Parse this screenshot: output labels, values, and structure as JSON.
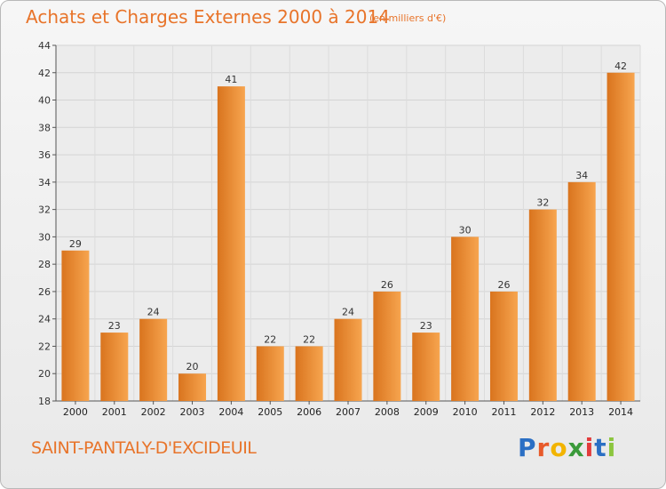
{
  "title": "Achats et Charges Externes 2000 à 2014",
  "unit": "(en milliers d'€)",
  "commune": "SAINT-PANTALY-D'EXCIDEUIL",
  "logo": {
    "letters": [
      "P",
      "r",
      "o",
      "x",
      "i",
      "t",
      "i"
    ],
    "colors": [
      "#2b6fc4",
      "#e85a2a",
      "#f2b400",
      "#3a9a3a",
      "#e23b3b",
      "#2b6fc4",
      "#8cc63f"
    ]
  },
  "colors": {
    "accent": "#e8742a",
    "bar_light": "#f7a54f",
    "bar_dark": "#d9741e"
  },
  "chart_data": {
    "type": "bar",
    "categories": [
      "2000",
      "2001",
      "2002",
      "2003",
      "2004",
      "2005",
      "2006",
      "2007",
      "2008",
      "2009",
      "2010",
      "2011",
      "2012",
      "2013",
      "2014"
    ],
    "values": [
      29,
      23,
      24,
      20,
      41,
      22,
      22,
      24,
      26,
      23,
      30,
      26,
      32,
      34,
      42
    ],
    "ylim": [
      18,
      44
    ],
    "yticks": [
      18,
      20,
      22,
      24,
      26,
      28,
      30,
      32,
      34,
      36,
      38,
      40,
      42,
      44
    ],
    "grid": true,
    "title": "Achats et Charges Externes 2000 à 2014",
    "xlabel": "",
    "ylabel": ""
  }
}
